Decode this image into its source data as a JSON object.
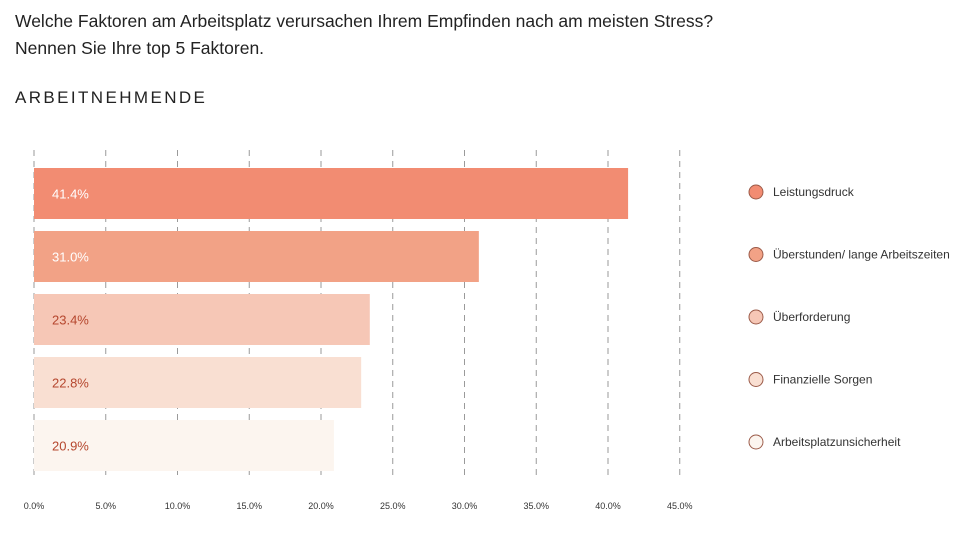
{
  "header": {
    "question": "Welche Faktoren am Arbeitsplatz verursachen Ihrem Empfinden nach am meisten Stress? Nennen Sie Ihre top 5 Faktoren.",
    "section": "ARBEITNEHMENDE"
  },
  "chart_data": {
    "type": "bar",
    "orientation": "horizontal",
    "categories": [
      "Leistungsdruck",
      "Überstunden/ lange Arbeitszeiten",
      "Überforderung",
      "Finanzielle Sorgen",
      "Arbeitsplatzunsicherheit"
    ],
    "values": [
      41.4,
      31.0,
      23.4,
      22.8,
      20.9
    ],
    "value_labels": [
      "41.4%",
      "31.0%",
      "23.4%",
      "22.8%",
      "20.9%"
    ],
    "colors": [
      "#f28c72",
      "#f2a286",
      "#f6c7b6",
      "#f9dfd2",
      "#fcf5ef"
    ],
    "label_colors": [
      "#ffffff",
      "#ffffff",
      "#b5462d",
      "#b5462d",
      "#b5462d"
    ],
    "xlim": [
      0,
      45
    ],
    "x_ticks": [
      0,
      5,
      10,
      15,
      20,
      25,
      30,
      35,
      40,
      45
    ],
    "x_tick_labels": [
      "0.0%",
      "5.0%",
      "10.0%",
      "15.0%",
      "20.0%",
      "25.0%",
      "30.0%",
      "35.0%",
      "40.0%",
      "45.0%"
    ],
    "grid": "vertical dashed",
    "legend_position": "right"
  }
}
